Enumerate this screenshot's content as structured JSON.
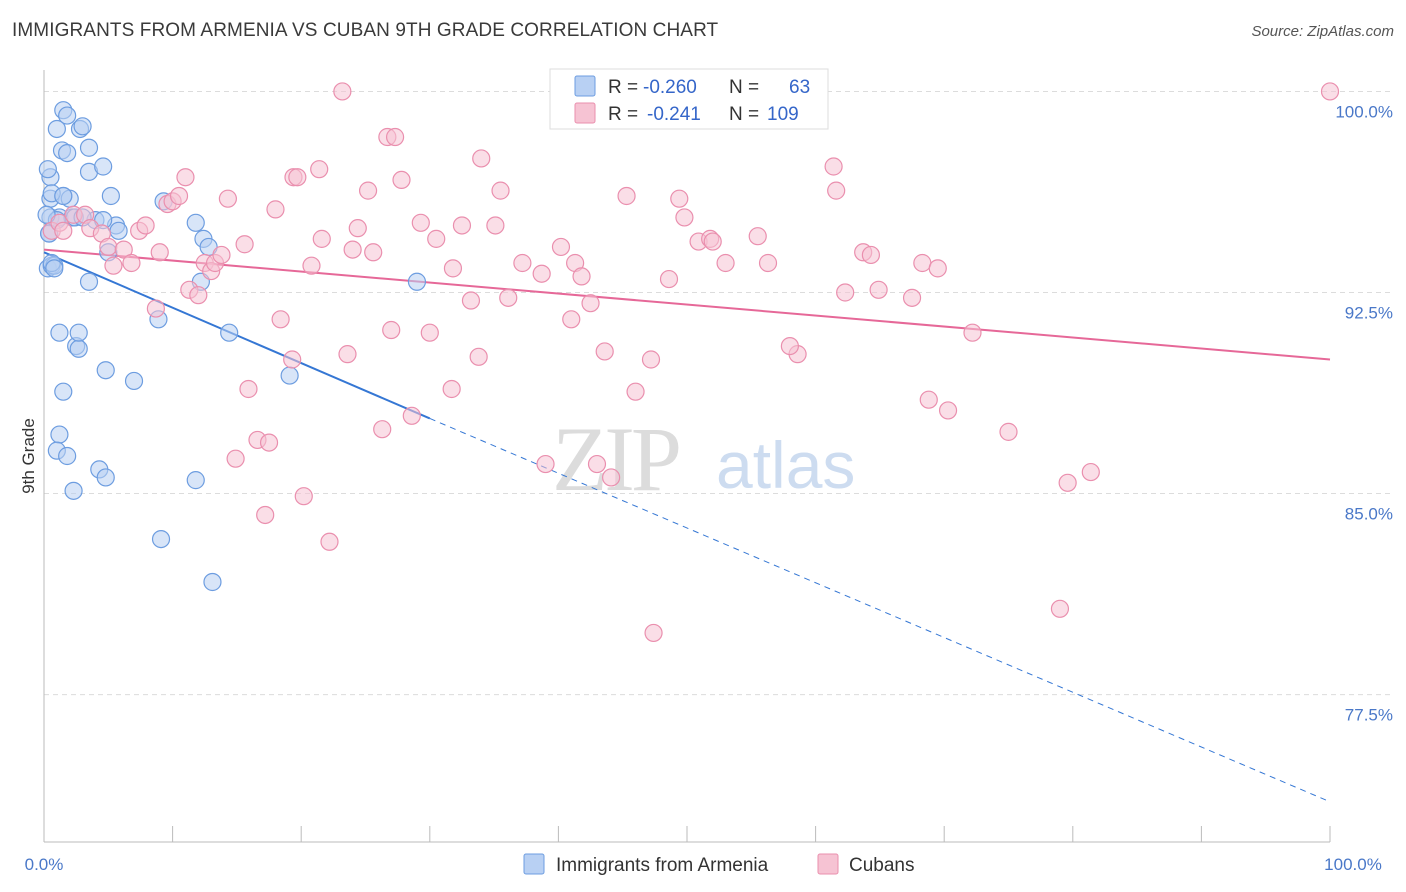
{
  "title": "IMMIGRANTS FROM ARMENIA VS CUBAN 9TH GRADE CORRELATION CHART",
  "source": "Source: ZipAtlas.com",
  "watermark": {
    "zip": "ZIP",
    "atlas": "atlas"
  },
  "colors": {
    "blue_fill": "#b8d0f3",
    "blue_stroke": "#6d9de0",
    "blue_line": "#3577d4",
    "pink_fill": "#f6c3d3",
    "pink_stroke": "#ea8fae",
    "pink_line": "#e66898",
    "value_text": "#3566c9",
    "grid": "#dcdcdc"
  },
  "legend": {
    "rows": [
      {
        "r_label": "R =",
        "r_value": "-0.260",
        "n_label": "N =",
        "n_value": "63",
        "color": "blue"
      },
      {
        "r_label": "R =",
        "r_value": "-0.241",
        "n_label": "N =",
        "n_value": "109",
        "color": "pink"
      }
    ]
  },
  "chart_data": {
    "type": "scatter",
    "title": "IMMIGRANTS FROM ARMENIA VS CUBAN 9TH GRADE CORRELATION CHART",
    "xlabel": "",
    "ylabel": "9th Grade",
    "xlim": [
      0,
      100
    ],
    "ylim": [
      72.0,
      100.8
    ],
    "x_tick_labels": [
      "0.0%",
      "100.0%"
    ],
    "y_ticks": [
      77.5,
      85.0,
      92.5,
      100.0
    ],
    "y_tick_labels": [
      "77.5%",
      "85.0%",
      "92.5%",
      "100.0%"
    ],
    "grid": "horizontal dashed",
    "legend_position": "bottom",
    "series": [
      {
        "name": "Immigrants from Armenia",
        "color": "blue",
        "trend": {
          "x0": 0,
          "y0": 94.0,
          "x1": 30,
          "y1": 87.8,
          "dashed_to_x": 100,
          "dashed_to_y": 73.5
        },
        "points": [
          [
            0.5,
            96.8
          ],
          [
            0.5,
            96.0
          ],
          [
            0.5,
            95.3
          ],
          [
            0.4,
            94.7
          ],
          [
            0.3,
            93.4
          ],
          [
            0.6,
            93.5
          ],
          [
            0.8,
            93.5
          ],
          [
            1.0,
            98.6
          ],
          [
            1.2,
            95.3
          ],
          [
            1.4,
            97.8
          ],
          [
            1.5,
            99.3
          ],
          [
            1.8,
            99.1
          ],
          [
            1.5,
            96.1
          ],
          [
            1.8,
            97.7
          ],
          [
            2.0,
            96.0
          ],
          [
            2.2,
            95.3
          ],
          [
            2.4,
            95.3
          ],
          [
            2.8,
            98.6
          ],
          [
            3.0,
            98.7
          ],
          [
            3.5,
            97.9
          ],
          [
            3.5,
            97.0
          ],
          [
            4.0,
            95.2
          ],
          [
            4.6,
            97.2
          ],
          [
            5.2,
            96.1
          ],
          [
            5.6,
            95.0
          ],
          [
            5.8,
            94.8
          ],
          [
            3.5,
            92.9
          ],
          [
            1.2,
            91.0
          ],
          [
            2.5,
            90.5
          ],
          [
            2.7,
            90.4
          ],
          [
            2.7,
            91.0
          ],
          [
            4.8,
            89.6
          ],
          [
            1.5,
            88.8
          ],
          [
            7.0,
            89.2
          ],
          [
            1.2,
            87.2
          ],
          [
            1.0,
            86.6
          ],
          [
            1.8,
            86.4
          ],
          [
            4.3,
            85.9
          ],
          [
            4.8,
            85.6
          ],
          [
            2.3,
            85.1
          ],
          [
            8.9,
            91.5
          ],
          [
            9.3,
            95.9
          ],
          [
            11.8,
            95.1
          ],
          [
            12.4,
            94.5
          ],
          [
            12.8,
            94.2
          ],
          [
            12.2,
            92.9
          ],
          [
            14.4,
            91.0
          ],
          [
            11.8,
            85.5
          ],
          [
            19.1,
            89.4
          ],
          [
            9.1,
            83.3
          ],
          [
            13.1,
            81.7
          ],
          [
            29.0,
            92.9
          ],
          [
            0.3,
            97.1
          ],
          [
            0.6,
            96.2
          ],
          [
            1.0,
            95.2
          ],
          [
            0.4,
            94.7
          ],
          [
            0.6,
            93.6
          ],
          [
            0.8,
            93.4
          ],
          [
            1.5,
            96.1
          ],
          [
            3.0,
            95.3
          ],
          [
            5.0,
            94.0
          ],
          [
            4.6,
            95.2
          ],
          [
            0.2,
            95.4
          ]
        ]
      },
      {
        "name": "Cubans",
        "color": "pink",
        "trend": {
          "x0": 0,
          "y0": 94.1,
          "x1": 100,
          "y1": 90.0
        },
        "points": [
          [
            0.6,
            94.8
          ],
          [
            1.2,
            95.1
          ],
          [
            1.5,
            94.8
          ],
          [
            2.3,
            95.4
          ],
          [
            3.2,
            95.4
          ],
          [
            3.6,
            94.9
          ],
          [
            4.5,
            94.7
          ],
          [
            5.0,
            94.2
          ],
          [
            5.4,
            93.5
          ],
          [
            6.2,
            94.1
          ],
          [
            6.8,
            93.6
          ],
          [
            7.4,
            94.8
          ],
          [
            7.9,
            95.0
          ],
          [
            8.7,
            91.9
          ],
          [
            9.0,
            94.0
          ],
          [
            9.6,
            95.8
          ],
          [
            10.0,
            95.9
          ],
          [
            10.5,
            96.1
          ],
          [
            11.0,
            96.8
          ],
          [
            11.3,
            92.6
          ],
          [
            12.0,
            92.4
          ],
          [
            12.5,
            93.6
          ],
          [
            13.0,
            93.3
          ],
          [
            13.3,
            93.6
          ],
          [
            13.8,
            93.9
          ],
          [
            14.3,
            96.0
          ],
          [
            14.9,
            86.3
          ],
          [
            15.6,
            94.3
          ],
          [
            15.9,
            88.9
          ],
          [
            16.6,
            87.0
          ],
          [
            17.2,
            84.2
          ],
          [
            17.5,
            86.9
          ],
          [
            18.0,
            95.6
          ],
          [
            18.4,
            91.5
          ],
          [
            19.3,
            90.0
          ],
          [
            19.4,
            96.8
          ],
          [
            19.7,
            96.8
          ],
          [
            20.2,
            84.9
          ],
          [
            20.8,
            93.5
          ],
          [
            21.4,
            97.1
          ],
          [
            21.6,
            94.5
          ],
          [
            22.2,
            83.2
          ],
          [
            23.2,
            100.0
          ],
          [
            23.6,
            90.2
          ],
          [
            24.0,
            94.1
          ],
          [
            24.4,
            94.9
          ],
          [
            25.2,
            96.3
          ],
          [
            25.6,
            94.0
          ],
          [
            26.3,
            87.4
          ],
          [
            26.7,
            98.3
          ],
          [
            27.0,
            91.1
          ],
          [
            27.3,
            98.3
          ],
          [
            27.8,
            96.7
          ],
          [
            28.6,
            87.9
          ],
          [
            29.3,
            95.1
          ],
          [
            30.0,
            91.0
          ],
          [
            30.5,
            94.5
          ],
          [
            31.7,
            88.9
          ],
          [
            31.8,
            93.4
          ],
          [
            32.5,
            95.0
          ],
          [
            33.2,
            92.2
          ],
          [
            33.8,
            90.1
          ],
          [
            34.0,
            97.5
          ],
          [
            35.1,
            95.0
          ],
          [
            35.5,
            96.3
          ],
          [
            36.1,
            92.3
          ],
          [
            37.2,
            93.6
          ],
          [
            38.7,
            93.2
          ],
          [
            40.2,
            94.2
          ],
          [
            41.0,
            91.5
          ],
          [
            41.3,
            93.6
          ],
          [
            41.8,
            93.1
          ],
          [
            42.5,
            92.1
          ],
          [
            43.0,
            86.1
          ],
          [
            43.6,
            90.3
          ],
          [
            44.1,
            85.6
          ],
          [
            45.3,
            96.1
          ],
          [
            46.0,
            88.8
          ],
          [
            47.2,
            90.0
          ],
          [
            47.4,
            79.8
          ],
          [
            48.6,
            93.0
          ],
          [
            49.4,
            96.0
          ],
          [
            49.8,
            95.3
          ],
          [
            50.9,
            94.4
          ],
          [
            51.8,
            94.5
          ],
          [
            53.0,
            93.6
          ],
          [
            55.5,
            94.6
          ],
          [
            56.3,
            93.6
          ],
          [
            58.6,
            90.2
          ],
          [
            61.4,
            97.2
          ],
          [
            61.6,
            96.3
          ],
          [
            62.3,
            92.5
          ],
          [
            63.7,
            94.0
          ],
          [
            64.3,
            93.9
          ],
          [
            64.9,
            92.6
          ],
          [
            67.5,
            92.3
          ],
          [
            68.3,
            93.6
          ],
          [
            68.8,
            88.5
          ],
          [
            69.5,
            93.4
          ],
          [
            70.3,
            88.1
          ],
          [
            72.2,
            91.0
          ],
          [
            75.0,
            87.3
          ],
          [
            79.0,
            80.7
          ],
          [
            79.6,
            85.4
          ],
          [
            81.4,
            85.8
          ],
          [
            100.0,
            100.0
          ],
          [
            52.0,
            94.4
          ],
          [
            58.0,
            90.5
          ],
          [
            39.0,
            86.1
          ]
        ]
      }
    ]
  },
  "bottom_legend": {
    "items": [
      {
        "label": "Immigrants from Armenia",
        "color": "blue"
      },
      {
        "label": "Cubans",
        "color": "pink"
      }
    ]
  }
}
